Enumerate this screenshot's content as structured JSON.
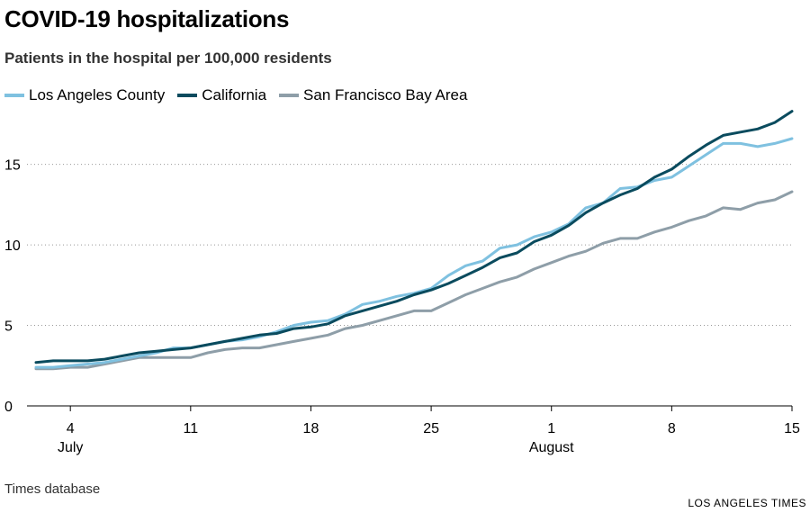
{
  "title": "COVID-19 hospitalizations",
  "subtitle": "Patients in the hospital per 100,000 residents",
  "source": "Times database",
  "credit": "LOS ANGELES TIMES",
  "chart_data": {
    "type": "line",
    "x_labels": [
      "Jul 2",
      "Jul 3",
      "Jul 4",
      "Jul 5",
      "Jul 6",
      "Jul 7",
      "Jul 8",
      "Jul 9",
      "Jul 10",
      "Jul 11",
      "Jul 12",
      "Jul 13",
      "Jul 14",
      "Jul 15",
      "Jul 16",
      "Jul 17",
      "Jul 18",
      "Jul 19",
      "Jul 20",
      "Jul 21",
      "Jul 22",
      "Jul 23",
      "Jul 24",
      "Jul 25",
      "Jul 26",
      "Jul 27",
      "Jul 28",
      "Jul 29",
      "Jul 30",
      "Jul 31",
      "Aug 1",
      "Aug 2",
      "Aug 3",
      "Aug 4",
      "Aug 5",
      "Aug 6",
      "Aug 7",
      "Aug 8",
      "Aug 9",
      "Aug 10",
      "Aug 11",
      "Aug 12",
      "Aug 13",
      "Aug 14",
      "Aug 15"
    ],
    "series": [
      {
        "name": "Los Angeles County",
        "color": "#7fc1e0",
        "values": [
          2.4,
          2.4,
          2.5,
          2.6,
          2.7,
          2.9,
          3.1,
          3.3,
          3.6,
          3.6,
          3.8,
          4.0,
          4.1,
          4.3,
          4.6,
          5.0,
          5.2,
          5.3,
          5.7,
          6.3,
          6.5,
          6.8,
          7.0,
          7.3,
          8.1,
          8.7,
          9.0,
          9.8,
          10.0,
          10.5,
          10.8,
          11.3,
          12.3,
          12.6,
          13.5,
          13.6,
          14.0,
          14.2,
          14.9,
          15.6,
          16.3,
          16.3,
          16.1,
          16.3,
          16.6
        ]
      },
      {
        "name": "California",
        "color": "#0a4b5e",
        "values": [
          2.7,
          2.8,
          2.8,
          2.8,
          2.9,
          3.1,
          3.3,
          3.4,
          3.5,
          3.6,
          3.8,
          4.0,
          4.2,
          4.4,
          4.5,
          4.8,
          4.9,
          5.1,
          5.6,
          5.9,
          6.2,
          6.5,
          6.9,
          7.2,
          7.6,
          8.1,
          8.6,
          9.2,
          9.5,
          10.2,
          10.6,
          11.2,
          12.0,
          12.6,
          13.1,
          13.5,
          14.2,
          14.7,
          15.5,
          16.2,
          16.8,
          17.0,
          17.2,
          17.6,
          18.3
        ]
      },
      {
        "name": "San Francisco Bay Area",
        "color": "#8e9ea8",
        "values": [
          2.3,
          2.3,
          2.4,
          2.4,
          2.6,
          2.8,
          3.0,
          3.0,
          3.0,
          3.0,
          3.3,
          3.5,
          3.6,
          3.6,
          3.8,
          4.0,
          4.2,
          4.4,
          4.8,
          5.0,
          5.3,
          5.6,
          5.9,
          5.9,
          6.4,
          6.9,
          7.3,
          7.7,
          8.0,
          8.5,
          8.9,
          9.3,
          9.6,
          10.1,
          10.4,
          10.4,
          10.8,
          11.1,
          11.5,
          11.8,
          12.3,
          12.2,
          12.6,
          12.8,
          13.3
        ]
      }
    ],
    "y_ticks": [
      0,
      5,
      10,
      15
    ],
    "ylim": [
      0,
      18.5
    ],
    "x_ticks": [
      {
        "day": "4",
        "month": "July",
        "index": 2
      },
      {
        "day": "11",
        "month": "",
        "index": 9
      },
      {
        "day": "18",
        "month": "",
        "index": 16
      },
      {
        "day": "25",
        "month": "",
        "index": 23
      },
      {
        "day": "1",
        "month": "August",
        "index": 30
      },
      {
        "day": "8",
        "month": "",
        "index": 37
      },
      {
        "day": "15",
        "month": "",
        "index": 44
      }
    ],
    "grid": true,
    "legend_position": "top-left"
  }
}
